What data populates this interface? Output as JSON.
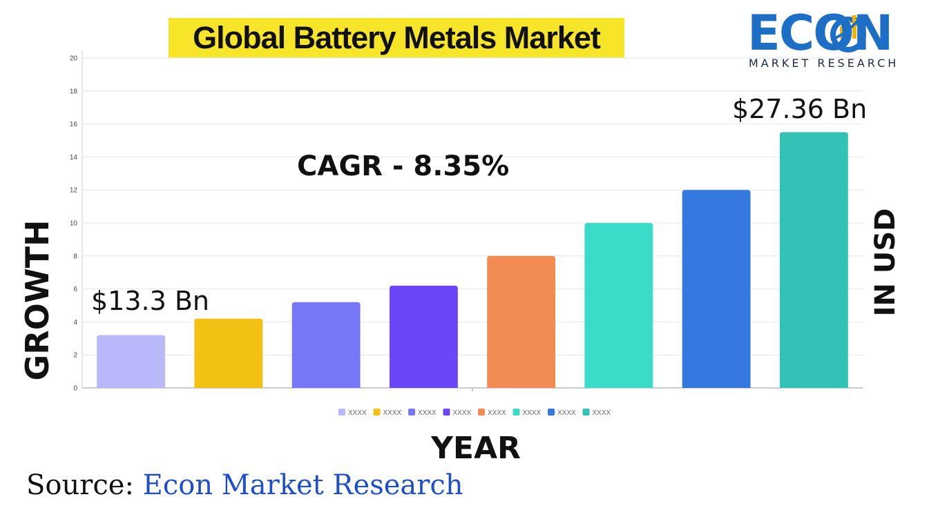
{
  "chart_data": {
    "type": "bar",
    "title": "Global Battery Metals Market",
    "categories": [
      "XXXX",
      "XXXX",
      "XXXX",
      "XXXX",
      "XXXX",
      "XXXX",
      "XXXX",
      "XXXX"
    ],
    "values": [
      3.2,
      4.2,
      5.2,
      6.2,
      8.0,
      10.0,
      12.0,
      15.5
    ],
    "colors": [
      "#b8b8fb",
      "#f2c114",
      "#7777f8",
      "#6b46f7",
      "#f28b54",
      "#3adbc8",
      "#3478e0",
      "#33c2b8"
    ],
    "xlabel": "YEAR",
    "ylabel": "GROWTH",
    "y2label": "IN USD",
    "ylim": [
      0,
      20
    ],
    "yticks": [
      0,
      2,
      4,
      6,
      8,
      10,
      12,
      14,
      16,
      18,
      20
    ],
    "grid": true,
    "legend": "bottom",
    "annotations": {
      "cagr": "CAGR - 8.35%",
      "start_value": "$13.3 Bn",
      "end_value": "$27.36 Bn"
    }
  },
  "brand": {
    "logo_text": "ECON",
    "logo_subtitle": "MARKET RESEARCH",
    "logo_icon": "bar-chart-growth-icon"
  },
  "source": {
    "label": "Source:",
    "value": "Econ Market Research"
  }
}
